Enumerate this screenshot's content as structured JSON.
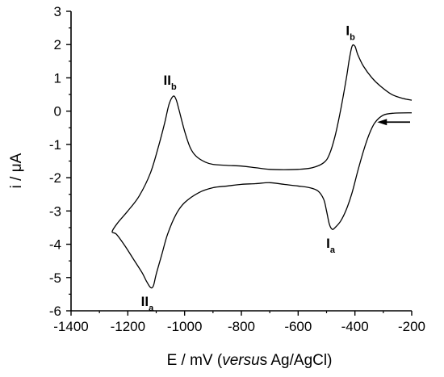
{
  "chart_data": {
    "type": "line",
    "title": "",
    "xlabel": {
      "parts": [
        {
          "text": "E / mV (",
          "italic": false
        },
        {
          "text": "versu",
          "italic": true
        },
        {
          "text": "s Ag/AgCl)",
          "italic": false
        }
      ]
    },
    "ylabel": {
      "parts": [
        {
          "text": "i / ",
          "italic": false
        },
        {
          "text": "μ",
          "italic": false
        },
        {
          "text": "A",
          "italic": false
        }
      ]
    },
    "xlim": [
      -1400,
      -200
    ],
    "ylim": [
      -6,
      3
    ],
    "xticks": [
      -1400,
      -1200,
      -1000,
      -800,
      -600,
      -400,
      -200
    ],
    "yticks": [
      -6,
      -5,
      -4,
      -3,
      -2,
      -1,
      0,
      1,
      2,
      3
    ],
    "grid": false,
    "legend": "none",
    "line_color": "#000000",
    "series": [
      {
        "points": [
          [
            -200,
            -0.05
          ],
          [
            -260,
            -0.06
          ],
          [
            -300,
            -0.12
          ],
          [
            -330,
            -0.35
          ],
          [
            -350,
            -0.7
          ],
          [
            -370,
            -1.2
          ],
          [
            -390,
            -1.8
          ],
          [
            -410,
            -2.45
          ],
          [
            -430,
            -2.95
          ],
          [
            -450,
            -3.3
          ],
          [
            -470,
            -3.5
          ],
          [
            -480,
            -3.55
          ],
          [
            -490,
            -3.4
          ],
          [
            -500,
            -3.0
          ],
          [
            -510,
            -2.65
          ],
          [
            -530,
            -2.4
          ],
          [
            -560,
            -2.3
          ],
          [
            -600,
            -2.25
          ],
          [
            -650,
            -2.2
          ],
          [
            -700,
            -2.15
          ],
          [
            -750,
            -2.18
          ],
          [
            -800,
            -2.2
          ],
          [
            -850,
            -2.25
          ],
          [
            -900,
            -2.3
          ],
          [
            -950,
            -2.45
          ],
          [
            -1000,
            -2.75
          ],
          [
            -1030,
            -3.1
          ],
          [
            -1060,
            -3.7
          ],
          [
            -1080,
            -4.3
          ],
          [
            -1100,
            -4.9
          ],
          [
            -1110,
            -5.25
          ],
          [
            -1120,
            -5.3
          ],
          [
            -1135,
            -5.1
          ],
          [
            -1150,
            -4.85
          ],
          [
            -1180,
            -4.45
          ],
          [
            -1210,
            -4.05
          ],
          [
            -1240,
            -3.7
          ],
          [
            -1255,
            -3.62
          ],
          [
            -1235,
            -3.35
          ],
          [
            -1200,
            -3.0
          ],
          [
            -1160,
            -2.55
          ],
          [
            -1120,
            -1.85
          ],
          [
            -1090,
            -1.0
          ],
          [
            -1070,
            -0.35
          ],
          [
            -1055,
            0.2
          ],
          [
            -1040,
            0.45
          ],
          [
            -1030,
            0.35
          ],
          [
            -1020,
            0.05
          ],
          [
            -1000,
            -0.6
          ],
          [
            -980,
            -1.1
          ],
          [
            -960,
            -1.35
          ],
          [
            -930,
            -1.52
          ],
          [
            -900,
            -1.6
          ],
          [
            -850,
            -1.63
          ],
          [
            -800,
            -1.65
          ],
          [
            -750,
            -1.7
          ],
          [
            -700,
            -1.75
          ],
          [
            -650,
            -1.76
          ],
          [
            -600,
            -1.75
          ],
          [
            -550,
            -1.7
          ],
          [
            -510,
            -1.55
          ],
          [
            -490,
            -1.3
          ],
          [
            -470,
            -0.75
          ],
          [
            -450,
            0.05
          ],
          [
            -430,
            1.0
          ],
          [
            -420,
            1.55
          ],
          [
            -410,
            1.95
          ],
          [
            -400,
            1.95
          ],
          [
            -390,
            1.7
          ],
          [
            -370,
            1.35
          ],
          [
            -340,
            1.0
          ],
          [
            -310,
            0.75
          ],
          [
            -270,
            0.5
          ],
          [
            -230,
            0.38
          ],
          [
            -200,
            0.33
          ]
        ]
      }
    ],
    "annotations": [
      {
        "main": "I",
        "sub": "b",
        "x": -410,
        "y": 1.95,
        "position": "above"
      },
      {
        "main": "II",
        "sub": "b",
        "x": -1040,
        "y": 0.45,
        "position": "above"
      },
      {
        "main": "I",
        "sub": "a",
        "x": -480,
        "y": -3.55,
        "position": "below"
      },
      {
        "main": "II",
        "sub": "a",
        "x": -1120,
        "y": -5.3,
        "position": "below"
      }
    ],
    "scan_arrow": {
      "from": [
        -200,
        -0.33
      ],
      "to": [
        -350,
        -0.33
      ],
      "direction": "left"
    }
  }
}
